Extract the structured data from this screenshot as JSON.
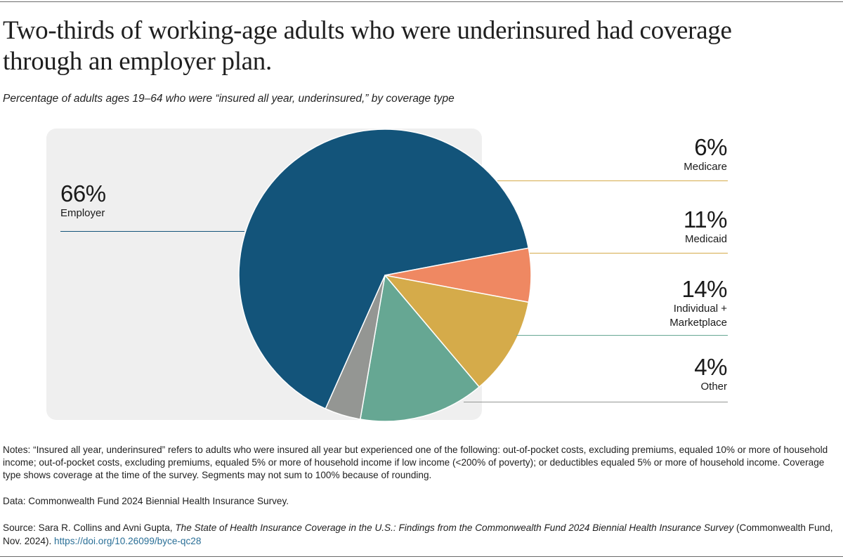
{
  "title": "Two-thirds of working-age adults who were underinsured had coverage through an employer plan.",
  "subtitle": "Percentage of adults ages 19–64 who were “insured all year, underinsured,” by coverage type",
  "chart_data": {
    "type": "pie",
    "title": "Two-thirds of working-age adults who were underinsured had coverage through an employer plan.",
    "subtitle": "Percentage of adults ages 19–64 who were “insured all year, underinsured,” by coverage type",
    "start_angle_deg": 204,
    "direction": "clockwise",
    "slices": [
      {
        "name": "Employer",
        "value": 66,
        "label": "66%",
        "color": "#13547a"
      },
      {
        "name": "Medicare",
        "value": 6,
        "label": "6%",
        "color": "#ef8862"
      },
      {
        "name": "Medicaid",
        "value": 11,
        "label": "11%",
        "color": "#d5ab4a"
      },
      {
        "name": "Individual + Marketplace",
        "value": 14,
        "label": "14%",
        "color": "#66a793",
        "display_lines": [
          "Individual +",
          "Marketplace"
        ]
      },
      {
        "name": "Other",
        "value": 4,
        "label": "4%",
        "color": "#949693"
      }
    ]
  },
  "colors": {
    "leader_employer": "#13547a",
    "leader_medicare": "#d5ab4a",
    "leader_medicaid": "#d5ab4a",
    "leader_individual": "#66a793",
    "leader_other": "#949693",
    "chart_bg": "#efefef"
  },
  "notes": "Notes: “Insured all year, underinsured” refers to adults who were insured all year but experienced one of the following: out-of-pocket costs, excluding premiums, equaled 10% or more of household income; out-of-pocket costs, excluding premiums, equaled 5% or more of household income if low income (<200% of poverty); or deductibles equaled 5% or more of household income. Coverage type shows coverage at the time of the survey. Segments may not sum to 100% because of rounding.",
  "data_line": "Data: Commonwealth Fund 2024 Biennial Health Insurance Survey.",
  "source": {
    "prefix": "Source: Sara R. Collins and Avni Gupta, ",
    "title": "The State of Health Insurance Coverage in the U.S.: Findings from the Commonwealth Fund 2024 Biennial Health Insurance Survey",
    "suffix": " (Commonwealth Fund, Nov. 2024). ",
    "link": "https://doi.org/10.26099/byce-qc28"
  }
}
